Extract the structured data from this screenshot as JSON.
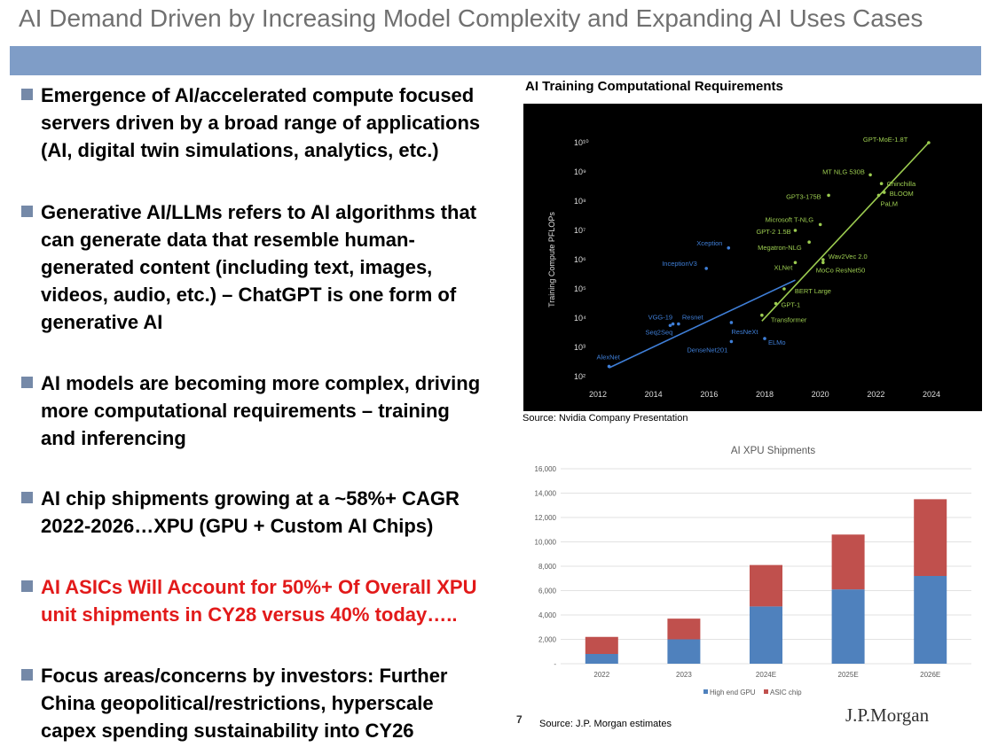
{
  "slide": {
    "title": "AI Demand Driven by Increasing Model Complexity and Expanding AI Uses Cases",
    "page_number": "7",
    "logo_text": "J.P.Morgan",
    "colors": {
      "band": "#7f9dc7",
      "bullet": "#7589a8",
      "red_text": "#e21a1a",
      "chart_bg": "#000000"
    }
  },
  "bullets": [
    {
      "lines": [
        "Emergence of AI/accelerated compute focused",
        "servers driven by a broad range of applications",
        "(AI, digital twin simulations, analytics, etc.)"
      ],
      "color": "black"
    },
    {
      "lines": [
        "Generative AI/LLMs refers to AI algorithms that",
        "can generate data that resemble human-",
        "generated content (including text, images,",
        "videos, audio, etc.) – ChatGPT is one form of",
        "generative AI"
      ],
      "color": "black"
    },
    {
      "lines": [
        "AI models are becoming more complex, driving",
        "more computational requirements – training",
        "and inferencing"
      ],
      "color": "black"
    },
    {
      "lines": [
        "AI chip shipments growing at a ~58%+ CAGR",
        "2022-2026…XPU (GPU + Custom AI Chips)"
      ],
      "color": "black"
    },
    {
      "lines": [
        "AI ASICs Will Account for 50%+ Of Overall XPU",
        "unit shipments in CY28 versus 40% today….."
      ],
      "color": "red"
    },
    {
      "lines": [
        "Focus areas/concerns by investors: Further",
        "China geopolitical/restrictions, hyperscale",
        "capex spending sustainability into CY26"
      ],
      "color": "black"
    }
  ],
  "chart_data": [
    {
      "type": "scatter",
      "title": "AI Training Computational Requirements",
      "source": "Source: Nvidia Company Presentation",
      "ylabel": "Training Compute PFLOPs",
      "y_scale": "log",
      "xlim": [
        2012,
        2024
      ],
      "ylim_exp": [
        2,
        10
      ],
      "x_ticks": [
        "2012",
        "2014",
        "2016",
        "2018",
        "2020",
        "2022",
        "2024"
      ],
      "y_ticks": [
        {
          "exp": 2,
          "label": "10²"
        },
        {
          "exp": 3,
          "label": "10³"
        },
        {
          "exp": 4,
          "label": "10⁴"
        },
        {
          "exp": 5,
          "label": "10⁵"
        },
        {
          "exp": 6,
          "label": "10⁶"
        },
        {
          "exp": 7,
          "label": "10⁷"
        },
        {
          "exp": 8,
          "label": "10⁸"
        },
        {
          "exp": 9,
          "label": "10⁹"
        },
        {
          "exp": 10,
          "label": "10¹⁰"
        }
      ],
      "colors": {
        "pre_transformer": "#3f7fd8",
        "transformer": "#9ccc50"
      },
      "series": [
        {
          "group": "pre_transformer",
          "points": [
            {
              "name": "AlexNet",
              "x": 2012.4,
              "exp": 2.35
            },
            {
              "name": "Seq2Seq",
              "x": 2014.6,
              "exp": 3.75
            },
            {
              "name": "VGG-19",
              "x": 2014.7,
              "exp": 3.8
            },
            {
              "name": "Resnet",
              "x": 2014.9,
              "exp": 3.8
            },
            {
              "name": "InceptionV3",
              "x": 2015.9,
              "exp": 5.7
            },
            {
              "name": "DenseNet201",
              "x": 2016.8,
              "exp": 3.2
            },
            {
              "name": "ResNeXt",
              "x": 2016.8,
              "exp": 3.85
            },
            {
              "name": "Xception",
              "x": 2016.7,
              "exp": 6.4
            },
            {
              "name": "ELMo",
              "x": 2018.0,
              "exp": 3.3
            }
          ],
          "trend": [
            [
              2012.4,
              2.3
            ],
            [
              2019.1,
              5.3
            ]
          ]
        },
        {
          "group": "transformer",
          "points": [
            {
              "name": "Transformer",
              "x": 2017.9,
              "exp": 4.1
            },
            {
              "name": "GPT-1",
              "x": 2018.4,
              "exp": 4.5
            },
            {
              "name": "BERT Large",
              "x": 2018.7,
              "exp": 5.0
            },
            {
              "name": "XLNet",
              "x": 2019.1,
              "exp": 5.9
            },
            {
              "name": "GPT-2 1.5B",
              "x": 2019.1,
              "exp": 7.0
            },
            {
              "name": "Megatron-NLG",
              "x": 2019.6,
              "exp": 6.6
            },
            {
              "name": "Microsoft T-NLG",
              "x": 2020.0,
              "exp": 7.2
            },
            {
              "name": "Wav2Vec 2.0",
              "x": 2020.1,
              "exp": 6.0
            },
            {
              "name": "MoCo ResNet50",
              "x": 2020.1,
              "exp": 5.9
            },
            {
              "name": "GPT3-175B",
              "x": 2020.3,
              "exp": 8.2
            },
            {
              "name": "MT NLG 530B",
              "x": 2021.8,
              "exp": 8.9
            },
            {
              "name": "Chinchilla",
              "x": 2022.2,
              "exp": 8.6
            },
            {
              "name": "BLOOM",
              "x": 2022.3,
              "exp": 8.3
            },
            {
              "name": "PaLM",
              "x": 2022.1,
              "exp": 8.2
            },
            {
              "name": "GPT-MoE-1.8T",
              "x": 2023.9,
              "exp": 10.0
            }
          ],
          "trend": [
            [
              2017.9,
              3.9
            ],
            [
              2023.9,
              10.0
            ]
          ]
        }
      ]
    },
    {
      "type": "bar",
      "stacked": true,
      "title": "AI XPU Shipments",
      "source": "Source: J.P. Morgan estimates",
      "categories": [
        "2022",
        "2023",
        "2024E",
        "2025E",
        "2026E"
      ],
      "ylim": [
        0,
        16000
      ],
      "y_ticks": [
        {
          "v": 0,
          "label": "-"
        },
        {
          "v": 2000,
          "label": "2,000"
        },
        {
          "v": 4000,
          "label": "4,000"
        },
        {
          "v": 6000,
          "label": "6,000"
        },
        {
          "v": 8000,
          "label": "8,000"
        },
        {
          "v": 10000,
          "label": "10,000"
        },
        {
          "v": 12000,
          "label": "12,000"
        },
        {
          "v": 14000,
          "label": "14,000"
        },
        {
          "v": 16000,
          "label": "16,000"
        }
      ],
      "series": [
        {
          "name": "High end GPU",
          "color": "#4f81bd",
          "values": [
            800,
            2000,
            4700,
            6100,
            7200
          ]
        },
        {
          "name": "ASIC chip",
          "color": "#c0504d",
          "values": [
            1400,
            1700,
            3400,
            4500,
            6300
          ]
        }
      ],
      "legend": "bottom"
    }
  ]
}
